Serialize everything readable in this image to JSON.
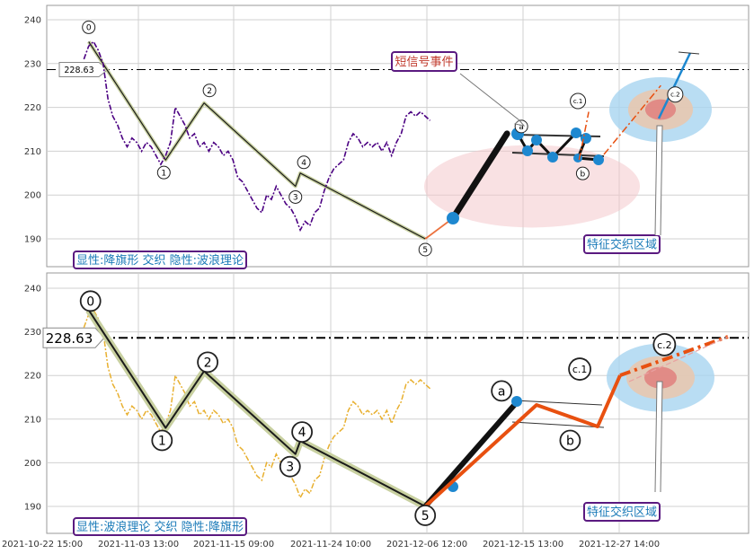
{
  "chart_data": [
    {
      "type": "line",
      "panel": "top",
      "ylim": [
        185,
        243
      ],
      "yticks": [
        190,
        200,
        210,
        220,
        230,
        240
      ],
      "grid": true,
      "hline": {
        "value": 228.63,
        "label": "228.63"
      },
      "annotation_title": "短信号事件",
      "region_label": "特征交织区域",
      "legend_box": "显性:降旗形 交织 隐性:波浪理论",
      "price_series": [
        [
          1,
          231
        ],
        [
          2,
          234
        ],
        [
          3,
          235
        ],
        [
          4,
          233
        ],
        [
          5,
          230
        ],
        [
          6,
          222
        ],
        [
          7,
          218
        ],
        [
          8,
          216
        ],
        [
          9,
          213
        ],
        [
          10,
          211
        ],
        [
          11,
          213
        ],
        [
          12,
          212
        ],
        [
          13,
          210
        ],
        [
          14,
          212
        ],
        [
          15,
          211
        ],
        [
          16,
          209
        ],
        [
          17,
          207
        ],
        [
          18,
          209
        ],
        [
          19,
          212
        ],
        [
          20,
          220
        ],
        [
          21,
          218
        ],
        [
          22,
          216
        ],
        [
          23,
          213
        ],
        [
          24,
          214
        ],
        [
          25,
          211
        ],
        [
          26,
          212
        ],
        [
          27,
          210
        ],
        [
          28,
          212
        ],
        [
          29,
          211
        ],
        [
          30,
          209
        ],
        [
          31,
          210
        ],
        [
          32,
          208
        ],
        [
          33,
          204
        ],
        [
          34,
          203
        ],
        [
          35,
          201
        ],
        [
          36,
          199
        ],
        [
          37,
          197
        ],
        [
          38,
          196
        ],
        [
          39,
          200
        ],
        [
          40,
          199
        ],
        [
          41,
          202
        ],
        [
          42,
          200
        ],
        [
          43,
          198
        ],
        [
          44,
          197
        ],
        [
          45,
          195
        ],
        [
          46,
          192
        ],
        [
          47,
          194
        ],
        [
          48,
          193
        ],
        [
          49,
          196
        ],
        [
          50,
          197
        ],
        [
          51,
          201
        ],
        [
          52,
          204
        ],
        [
          53,
          206
        ],
        [
          54,
          207
        ],
        [
          55,
          208
        ],
        [
          56,
          212
        ],
        [
          57,
          214
        ],
        [
          58,
          213
        ],
        [
          59,
          211
        ],
        [
          60,
          212
        ],
        [
          61,
          211
        ],
        [
          62,
          212
        ],
        [
          63,
          210
        ],
        [
          64,
          212
        ],
        [
          65,
          209
        ],
        [
          66,
          212
        ],
        [
          67,
          214
        ],
        [
          68,
          218
        ],
        [
          69,
          219
        ],
        [
          70,
          218
        ],
        [
          71,
          219
        ],
        [
          72,
          218
        ],
        [
          73,
          217
        ]
      ],
      "wave_points": [
        {
          "label": "0",
          "x": 2,
          "y": 235
        },
        {
          "label": "1",
          "x": 18,
          "y": 208
        },
        {
          "label": "2",
          "x": 26,
          "y": 221
        },
        {
          "label": "3",
          "x": 45,
          "y": 202
        },
        {
          "label": "4",
          "x": 46,
          "y": 205
        },
        {
          "label": "5",
          "x": 72,
          "y": 190
        }
      ],
      "flag_points": [
        {
          "label": "a",
          "x": 89,
          "y": 214
        },
        {
          "label": "b",
          "x": 104,
          "y": 208
        },
        {
          "label": "c.1",
          "x": 106,
          "y": 219
        },
        {
          "label": "c.2",
          "x": 121,
          "y": 225
        }
      ]
    },
    {
      "type": "line",
      "panel": "bottom",
      "ylim": [
        185,
        243
      ],
      "yticks": [
        190,
        200,
        210,
        220,
        230,
        240
      ],
      "grid": true,
      "hline": {
        "value": 228.63,
        "label": "228.63"
      },
      "region_label": "特征交织区域",
      "legend_box": "显性:波浪理论 交织 隐性:降旗形",
      "wave_points": [
        {
          "label": "0",
          "x": 2,
          "y": 235
        },
        {
          "label": "1",
          "x": 18,
          "y": 208
        },
        {
          "label": "2",
          "x": 26,
          "y": 221
        },
        {
          "label": "3",
          "x": 45,
          "y": 202
        },
        {
          "label": "4",
          "x": 46,
          "y": 205
        },
        {
          "label": "5",
          "x": 72,
          "y": 190
        },
        {
          "label": "a",
          "x": 89,
          "y": 214
        },
        {
          "label": "b",
          "x": 104,
          "y": 208
        },
        {
          "label": "c.1",
          "x": 106,
          "y": 219
        },
        {
          "label": "c.2",
          "x": 121,
          "y": 225
        }
      ]
    }
  ],
  "x_tick_labels": [
    "2021-10-22 15:00",
    "2021-11-03 13:00",
    "2021-11-15 09:00",
    "2021-11-24 10:00",
    "2021-12-06 12:00",
    "2021-12-15 13:00",
    "2021-12-27 14:00"
  ],
  "colors": {
    "top_price": "#4b0082",
    "bottom_price": "#e8b030",
    "wave_line": "#1a1a1a",
    "wave_shadow": "#c8d0a0",
    "orange": "#e85010",
    "blue_dot": "#1e88d0",
    "box_border": "#5a1a80",
    "box_text": "#1a7ab8",
    "annot_text": "#c0392b"
  }
}
